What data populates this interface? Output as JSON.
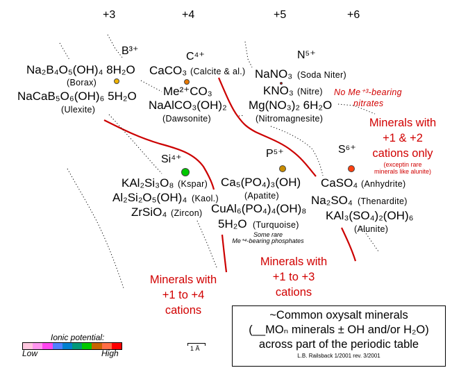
{
  "oxidation_states": [
    "+3",
    "+4",
    "+5",
    "+6"
  ],
  "elements": {
    "boron": "B³⁺",
    "carbon": "C⁴⁺",
    "nitrogen": "N⁵⁺",
    "silicon": "Si⁴⁺",
    "phosphorus": "P⁵⁺",
    "sulfur": "S⁶⁺"
  },
  "borates": [
    {
      "formula": "Na₂B₄O₅(OH)₄ 8H₂O",
      "name": "(Borax)"
    },
    {
      "formula": "NaCaB₅O₆(OH)₆ 5H₂O",
      "name": "(Ulexite)"
    }
  ],
  "carbonates": [
    {
      "formula": "CaCO₃",
      "name": "(Calcite & al.)"
    },
    {
      "formula": "Me²⁺CO₃",
      "name": ""
    },
    {
      "formula": "NaAlCO₃(OH)₂",
      "name": "(Dawsonite)"
    }
  ],
  "nitrates": [
    {
      "formula": "NaNO₃",
      "name": "(Soda Niter)"
    },
    {
      "formula": "KNO₃",
      "name": "(Nitre)"
    },
    {
      "formula": "Mg(NO₃)₂ 6H₂O",
      "name": "(Nitromagnesite)"
    }
  ],
  "silicates": [
    {
      "formula": "KAl₂Si₃O₈",
      "name": "(Kspar)"
    },
    {
      "formula": "Al₂Si₂O₅(OH)₄",
      "name": "(Kaol.)"
    },
    {
      "formula": "ZrSiO₄",
      "name": "(Zircon)"
    }
  ],
  "phosphates": [
    {
      "formula": "Ca₅(PO₄)₃(OH)",
      "name": "(Apatite)"
    },
    {
      "formula": "CuAl₆(PO₄)₄(OH)₈",
      "name": ""
    },
    {
      "formula": "5H₂O",
      "name": "(Turquoise)"
    }
  ],
  "sulfates": [
    {
      "formula": "CaSO₄",
      "name": "(Anhydrite)"
    },
    {
      "formula": "Na₂SO₄",
      "name": "(Thenardite)"
    },
    {
      "formula": "KAl₃(SO₄)₂(OH)₆",
      "name": "(Alunite)"
    }
  ],
  "notes": {
    "nitrates_1": "No Me⁺³-bearing",
    "nitrates_2": "nitrates",
    "phosphates_1": "Some rare",
    "phosphates_2": "Me⁺⁴-bearing phosphates",
    "region12": [
      "Minerals with",
      "+1 & +2",
      "cations only"
    ],
    "region12_note": [
      "(exceptin rare",
      "minerals like alunite)"
    ],
    "region13": [
      "Minerals with",
      "+1 to +3",
      "cations"
    ],
    "region14": [
      "Minerals with",
      "+1 to +4",
      "cations"
    ]
  },
  "title_box": {
    "line1": "~Common oxysalt minerals",
    "line2": "(__MOₙ minerals ± OH and/or H₂O)",
    "line3": "across part of the periodic table",
    "credit": "L.B. Railsback 1/2001  rev. 3/2001"
  },
  "legend": {
    "label": "Ionic potential:",
    "low": "Low",
    "high": "High",
    "colors": [
      "#ffc8e0",
      "#ff96f0",
      "#ff46f0",
      "#5080ff",
      "#0080d0",
      "#009878",
      "#00c800",
      "#c86400",
      "#ff6e46",
      "#ff0000"
    ],
    "dot_colors": {
      "boron": "#f0b400",
      "carbon": "#e87800",
      "nitrogen": "#d10000",
      "silicon": "#00c800",
      "phosphorus": "#c88c00",
      "sulfur": "#ff4010"
    }
  },
  "scale_bar": "1 Å"
}
